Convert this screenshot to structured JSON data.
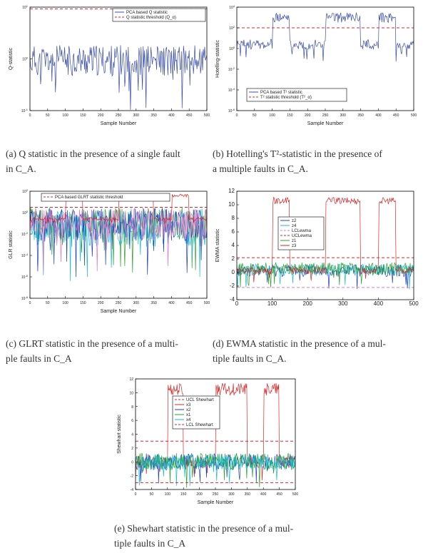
{
  "charts": [
    {
      "id": "a",
      "caption_line1": "(a) Q statistic in the presence of a single fault",
      "caption_line2": "in C_A.",
      "chart_data": {
        "type": "line",
        "xlabel": "Sample Number",
        "ylabel": "Q-statistic",
        "yscale": "log",
        "xlim": [
          0,
          500
        ],
        "ylim_exp": [
          -2,
          1
        ],
        "xticks": [
          "0",
          "50",
          "100",
          "150",
          "200",
          "250",
          "300",
          "350",
          "400",
          "450",
          "500"
        ],
        "yticks": [
          "10^-1",
          "10^0",
          "10^1"
        ],
        "legend_position": "top-right",
        "series": [
          {
            "name": "PCA based Q statistic",
            "color": "#3b4fa8",
            "style": "solid",
            "pattern": "noise",
            "base": -0.55,
            "amp": 0.45
          },
          {
            "name": "Q statistic threshold (Q_α)",
            "color": "#d62728",
            "style": "dashed",
            "pattern": "flat",
            "value": 0.95
          }
        ]
      }
    },
    {
      "id": "b",
      "caption_line1": "(b) Hotelling's T²-statistic in the presence of",
      "caption_line2": "a multiple faults in C_A.",
      "chart_data": {
        "type": "line",
        "xlabel": "Sample Number",
        "ylabel": "Hotelling-statistic",
        "yscale": "log",
        "xlim": [
          0,
          500
        ],
        "ylim_exp": [
          -6,
          4
        ],
        "xticks": [
          "0",
          "50",
          "100",
          "150",
          "200",
          "250",
          "300",
          "350",
          "400",
          "450",
          "500"
        ],
        "yticks": [
          "10^-6",
          "10^-4",
          "10^-2",
          "10^0",
          "10^2",
          "10^4"
        ],
        "legend_position": "bottom-right",
        "series": [
          {
            "name": "PCA based T² statistic",
            "color": "#3b4fa8",
            "style": "solid",
            "pattern": "steps",
            "low": 0.4,
            "high": 3.0,
            "amp": 0.5
          },
          {
            "name": "T² statistic threshold (T²_α)",
            "color": "#d62728",
            "style": "dashed",
            "pattern": "flat",
            "value": 2.0
          }
        ]
      }
    },
    {
      "id": "c",
      "caption_line1": "(c) GLRT statistic in the presence of a multi-",
      "caption_line2": "ple faults in C_A",
      "chart_data": {
        "type": "line",
        "xlabel": "Sample Number",
        "ylabel": "GLR statistic",
        "yscale": "log",
        "xlim": [
          0,
          500
        ],
        "ylim_exp": [
          -8,
          2
        ],
        "xticks": [
          "0",
          "50",
          "100",
          "150",
          "200",
          "250",
          "300",
          "350",
          "400",
          "450",
          "500"
        ],
        "yticks": [
          "10^-8",
          "10^-6",
          "10^-4",
          "10^-2",
          "10^0",
          "10^2"
        ],
        "legend_position": "top",
        "series": [
          {
            "name": "PCA based GLRT statistic threshold",
            "color": "#d62728",
            "style": "dashed",
            "pattern": "flat",
            "value": 0.5
          },
          {
            "name": "",
            "color": "#2ca02c",
            "style": "solid",
            "pattern": "noise",
            "base": -1.0,
            "amp": 1.5
          },
          {
            "name": "",
            "color": "#17becf",
            "style": "solid",
            "pattern": "noise",
            "base": -1.4,
            "amp": 1.8
          },
          {
            "name": "",
            "color": "#1f3fbf",
            "style": "solid",
            "pattern": "noise",
            "base": -1.2,
            "amp": 1.6
          },
          {
            "name": "",
            "color": "#e377c2",
            "style": "solid",
            "pattern": "noise",
            "base": -1.1,
            "amp": 1.5
          },
          {
            "name": "",
            "color": "#d62728",
            "style": "solid",
            "pattern": "steps",
            "low": -0.6,
            "high": 1.6,
            "amp": 0.15
          }
        ]
      }
    },
    {
      "id": "d",
      "caption_line1": "(d) EWMA statistic in the presence of a mul-",
      "caption_line2": "tiple faults in C_A.",
      "chart_data": {
        "type": "line",
        "xlabel": "",
        "ylabel": "EWMA statistic",
        "yscale": "linear",
        "xlim": [
          0,
          500
        ],
        "ylim": [
          -4,
          12
        ],
        "xticks": [
          "0",
          "100",
          "200",
          "300",
          "400",
          "500"
        ],
        "yticks": [
          "-4",
          "-2",
          "0",
          "2",
          "4",
          "6",
          "8",
          "10",
          "12"
        ],
        "legend_position": "center-left",
        "series": [
          {
            "name": "z2",
            "color": "#1f3fbf",
            "style": "solid",
            "pattern": "noise",
            "base": 0.3,
            "amp": 0.9
          },
          {
            "name": "z4",
            "color": "#17becf",
            "style": "solid",
            "pattern": "noise",
            "base": 0.4,
            "amp": 0.9
          },
          {
            "name": "LCLewma",
            "color": "#e377c2",
            "style": "dashed",
            "pattern": "flat",
            "value": -2.2
          },
          {
            "name": "UCLewma",
            "color": "#d62728",
            "style": "dashed",
            "pattern": "flat",
            "value": 2.2
          },
          {
            "name": "z1",
            "color": "#2ca02c",
            "style": "solid",
            "pattern": "noise",
            "base": 0.6,
            "amp": 0.9
          },
          {
            "name": "z3",
            "color": "#d62728",
            "style": "solid",
            "pattern": "steps",
            "low": 0.3,
            "high": 10.6,
            "amp": 0.5
          }
        ]
      }
    },
    {
      "id": "e",
      "caption_line1": "(e) Shewhart statistic in the presence of a mul-",
      "caption_line2": "tiple faults in C_A",
      "chart_data": {
        "type": "line",
        "xlabel": "Sample Number",
        "ylabel": "Shewhart statistic",
        "yscale": "linear",
        "xlim": [
          0,
          500
        ],
        "ylim": [
          -4,
          12
        ],
        "xticks": [
          "0",
          "50",
          "100",
          "150",
          "200",
          "250",
          "300",
          "350",
          "400",
          "450",
          "500"
        ],
        "yticks": [
          "-4",
          "-2",
          "0",
          "2",
          "4",
          "6",
          "8",
          "10",
          "12"
        ],
        "legend_position": "center-left",
        "series": [
          {
            "name": "UCL Shewhart",
            "color": "#d62728",
            "style": "dashed",
            "pattern": "flat",
            "value": 3.0
          },
          {
            "name": "x3",
            "color": "#d62728",
            "style": "solid",
            "pattern": "steps",
            "low": 0.0,
            "high": 10.5,
            "amp": 0.9
          },
          {
            "name": "x2",
            "color": "#1f3fbf",
            "style": "solid",
            "pattern": "noise",
            "base": 0.0,
            "amp": 1.2
          },
          {
            "name": "x1",
            "color": "#2ca02c",
            "style": "solid",
            "pattern": "noise",
            "base": 0.1,
            "amp": 1.2
          },
          {
            "name": "x4",
            "color": "#17becf",
            "style": "solid",
            "pattern": "noise",
            "base": 0.0,
            "amp": 1.2
          },
          {
            "name": "LCL Shewhart",
            "color": "#d62728",
            "style": "dashed",
            "pattern": "flat",
            "value": -3.0
          }
        ]
      }
    }
  ]
}
